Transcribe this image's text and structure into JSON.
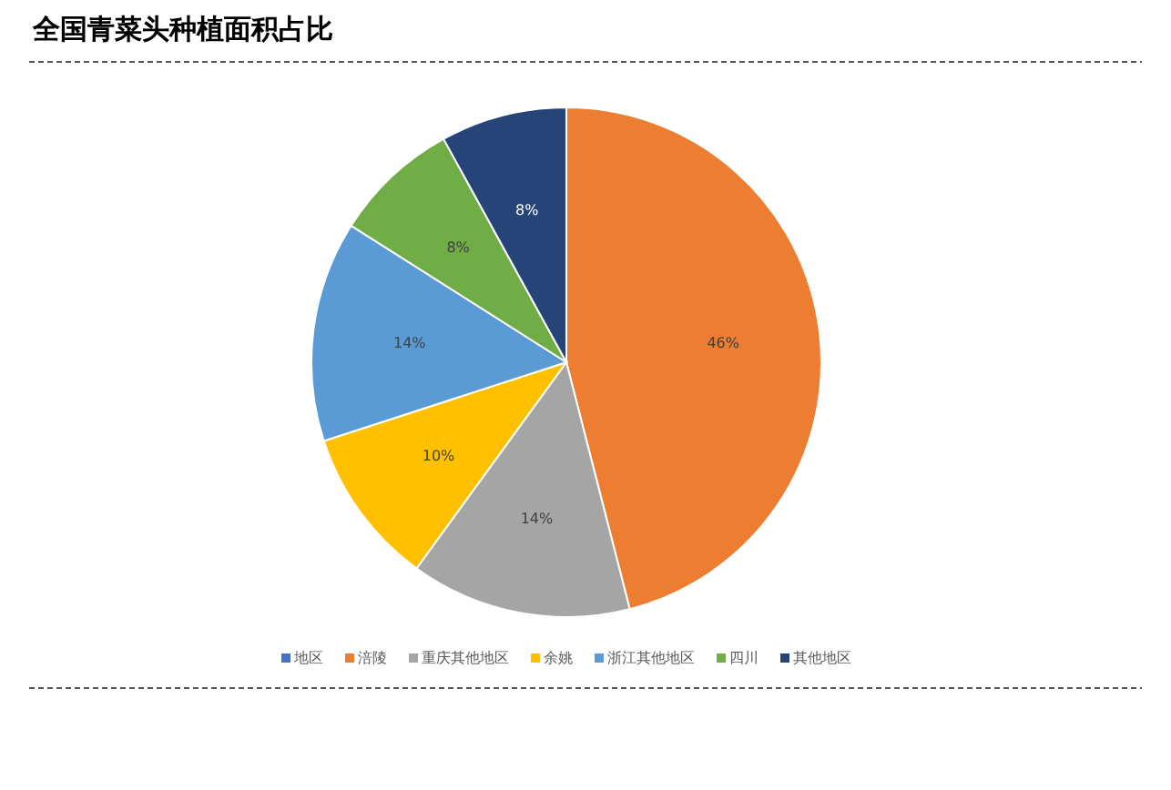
{
  "chart_data": {
    "type": "pie",
    "title": "全国青菜头种植面积占比",
    "categories": [
      "地区",
      "涪陵",
      "重庆其他地区",
      "余姚",
      "浙江其他地区",
      "四川",
      "其他地区"
    ],
    "values": [
      0,
      46,
      14,
      10,
      14,
      8,
      8
    ],
    "value_labels": [
      null,
      "46%",
      "14%",
      "10%",
      "14%",
      "8%",
      "8%"
    ],
    "colors": [
      "#4472c4",
      "#ed7d31",
      "#a5a5a5",
      "#ffc000",
      "#5b9bd5",
      "#70ad47",
      "#264478"
    ],
    "legend": "bottom"
  }
}
